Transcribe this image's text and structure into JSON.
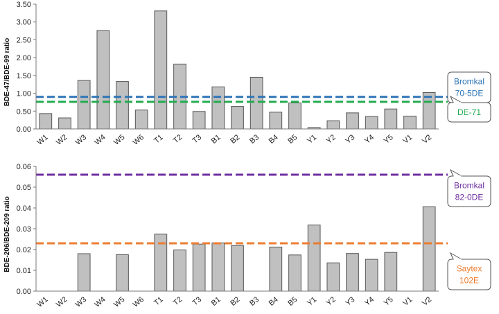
{
  "chart_data": [
    {
      "type": "bar",
      "categories": [
        "W1",
        "W2",
        "W3",
        "W4",
        "W5",
        "W6",
        "T1",
        "T2",
        "T3",
        "B1",
        "B2",
        "B3",
        "B4",
        "B5",
        "Y1",
        "Y2",
        "Y3",
        "Y4",
        "Y5",
        "V1",
        "V2"
      ],
      "values": [
        0.43,
        0.31,
        1.36,
        2.76,
        1.33,
        0.53,
        3.31,
        1.82,
        0.49,
        1.18,
        0.63,
        1.45,
        0.47,
        0.73,
        0.04,
        0.23,
        0.45,
        0.35,
        0.56,
        0.36,
        1.02
      ],
      "ylabel": "BDE-47/BDE-99 ratio",
      "ylim": [
        0,
        3.5
      ],
      "yticks": [
        "0.00",
        "0.50",
        "1.00",
        "1.50",
        "2.00",
        "2.50",
        "3.00",
        "3.50"
      ],
      "grid": false,
      "bar_color": "#c0c0c0",
      "reference_lines": [
        {
          "value": 0.9,
          "color": "#2e75b6",
          "label_lines": [
            "Bromkal",
            "70-5DE"
          ]
        },
        {
          "value": 0.76,
          "color": "#22ab4e",
          "label_lines": [
            "DE-71"
          ]
        }
      ]
    },
    {
      "type": "bar",
      "categories": [
        "W1",
        "W2",
        "W3",
        "W4",
        "W5",
        "W6",
        "T1",
        "T2",
        "T3",
        "B1",
        "B2",
        "B3",
        "B4",
        "B5",
        "Y1",
        "Y2",
        "Y3",
        "Y4",
        "Y5",
        "V1",
        "V2"
      ],
      "values": [
        null,
        null,
        0.018,
        null,
        0.0175,
        null,
        0.0274,
        0.0198,
        0.0226,
        0.0232,
        0.0219,
        null,
        0.0212,
        0.0174,
        0.0318,
        0.0136,
        0.0181,
        0.0153,
        0.0186,
        null,
        0.0406
      ],
      "ylabel": "BDE-206/BDE-209 ratio",
      "ylim": [
        0,
        0.06
      ],
      "yticks": [
        "0.00",
        "0.01",
        "0.02",
        "0.03",
        "0.04",
        "0.05",
        "0.06"
      ],
      "grid": false,
      "bar_color": "#c0c0c0",
      "reference_lines": [
        {
          "value": 0.056,
          "color": "#7030a0",
          "label_lines": [
            "Bromkal",
            "82-0DE"
          ]
        },
        {
          "value": 0.023,
          "color": "#ed7d31",
          "label_lines": [
            "Saytex",
            "102E"
          ]
        }
      ]
    }
  ]
}
